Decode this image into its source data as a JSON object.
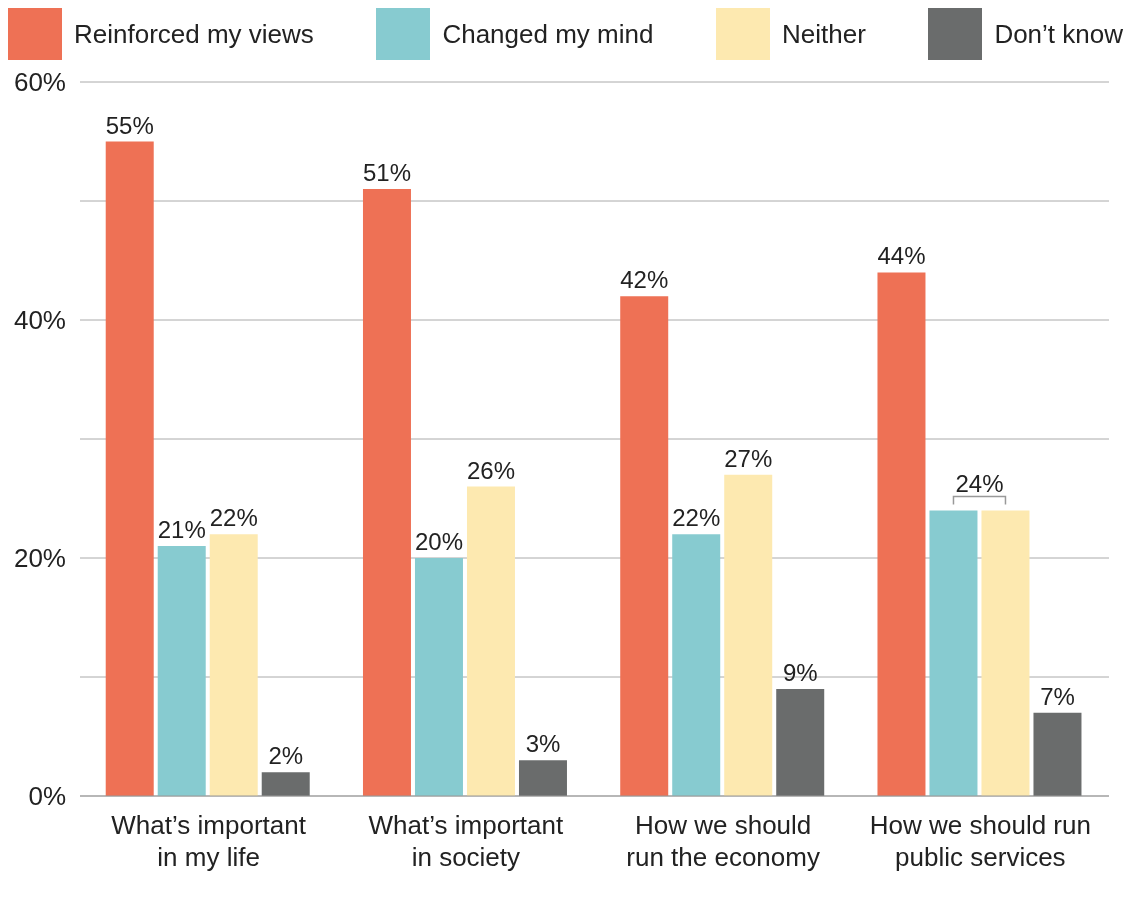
{
  "chart_data": {
    "type": "bar",
    "categories": [
      "What’s important in my life",
      "What’s important in society",
      "How we should run the economy",
      "How we should run public services"
    ],
    "series": [
      {
        "name": "Reinforced my views",
        "color": "#ee7155",
        "values": [
          55,
          51,
          42,
          44
        ],
        "value_labels": [
          "55%",
          "51%",
          "42%",
          "44%"
        ]
      },
      {
        "name": "Changed my mind",
        "color": "#87cbd0",
        "values": [
          21,
          20,
          22,
          24
        ],
        "value_labels": [
          "21%",
          "20%",
          "22%",
          "24%"
        ]
      },
      {
        "name": "Neither",
        "color": "#fde9b0",
        "values": [
          22,
          26,
          27,
          24
        ],
        "value_labels": [
          "22%",
          "26%",
          "27%",
          null
        ]
      },
      {
        "name": "Don’t know",
        "color": "#6a6c6c",
        "values": [
          2,
          3,
          9,
          7
        ],
        "value_labels": [
          "2%",
          "3%",
          "9%",
          "7%"
        ]
      }
    ],
    "ylim": [
      0,
      60
    ],
    "yticks": [
      {
        "value": 0,
        "label": "0%"
      },
      {
        "value": 10,
        "label": null
      },
      {
        "value": 20,
        "label": "20%"
      },
      {
        "value": 30,
        "label": null
      },
      {
        "value": 40,
        "label": "40%"
      },
      {
        "value": 50,
        "label": null
      },
      {
        "value": 60,
        "label": "60%"
      }
    ],
    "grid": "y",
    "legend": "top"
  }
}
